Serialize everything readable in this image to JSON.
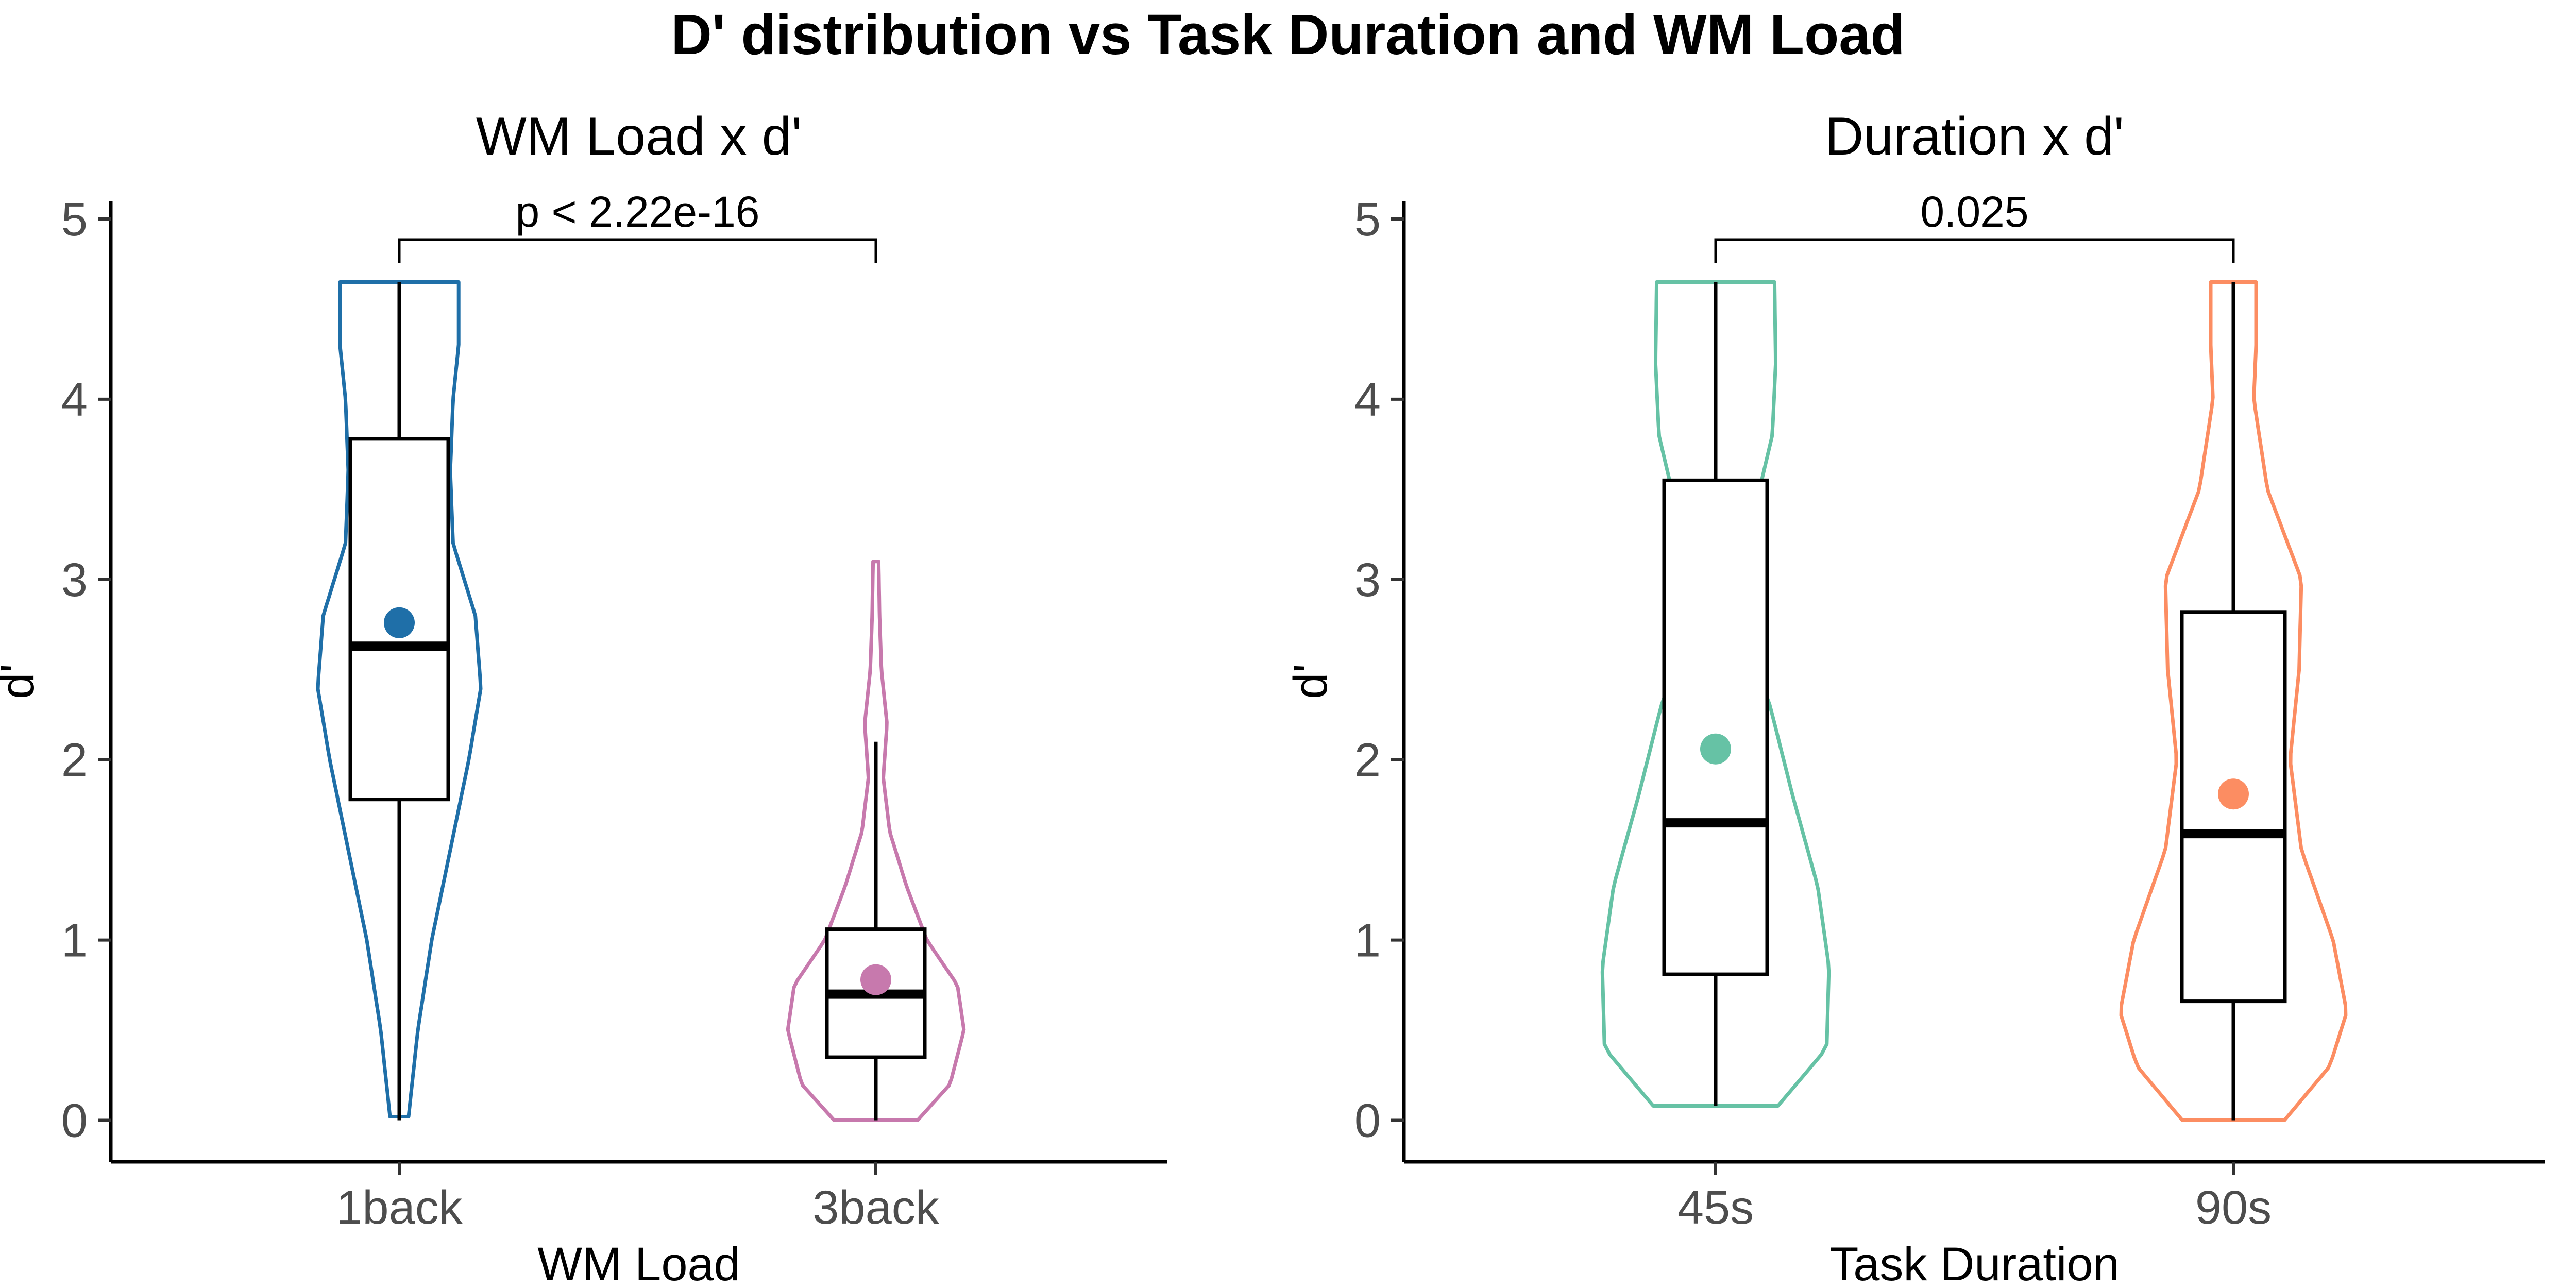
{
  "title": "D' distribution vs Task Duration and WM Load",
  "chart_data": [
    {
      "type": "violin",
      "title": "WM Load x d'",
      "xlabel": "WM Load",
      "ylabel": "d'",
      "categories": [
        "1back",
        "3back"
      ],
      "ylim": [
        -0.23,
        5.1
      ],
      "yticks": [
        0,
        1,
        2,
        3,
        4,
        5
      ],
      "colors": [
        "#1f6fa8",
        "#c779ad"
      ],
      "significance": {
        "between": [
          "1back",
          "3back"
        ],
        "label": "p < 2.22e-16"
      },
      "series": [
        {
          "name": "1back",
          "violin_range": [
            0.02,
            4.65
          ],
          "violin_profile": [
            [
              0.02,
              0.1
            ],
            [
              0.5,
              0.2
            ],
            [
              1.0,
              0.35
            ],
            [
              1.5,
              0.55
            ],
            [
              2.0,
              0.75
            ],
            [
              2.4,
              0.88
            ],
            [
              2.8,
              0.82
            ],
            [
              3.2,
              0.58
            ],
            [
              3.6,
              0.55
            ],
            [
              4.0,
              0.58
            ],
            [
              4.3,
              0.64
            ],
            [
              4.65,
              0.64
            ]
          ],
          "box": {
            "min": 0.0,
            "q1": 1.78,
            "median": 2.63,
            "q3": 3.78,
            "max": 4.65
          },
          "mean": 2.76
        },
        {
          "name": "3back",
          "violin_range": [
            0.0,
            3.1
          ],
          "violin_profile": [
            [
              0.0,
              0.45
            ],
            [
              0.2,
              0.8
            ],
            [
              0.5,
              0.95
            ],
            [
              0.75,
              0.88
            ],
            [
              1.0,
              0.55
            ],
            [
              1.3,
              0.33
            ],
            [
              1.6,
              0.15
            ],
            [
              1.9,
              0.08
            ],
            [
              2.2,
              0.12
            ],
            [
              2.5,
              0.06
            ],
            [
              2.8,
              0.04
            ],
            [
              3.1,
              0.03
            ]
          ],
          "box": {
            "min": 0.0,
            "q1": 0.35,
            "median": 0.7,
            "q3": 1.06,
            "max": 2.1
          },
          "mean": 0.78
        }
      ]
    },
    {
      "type": "violin",
      "title": "Duration x d'",
      "xlabel": "Task Duration",
      "ylabel": "d'",
      "categories": [
        "45s",
        "90s"
      ],
      "ylim": [
        -0.23,
        5.1
      ],
      "yticks": [
        0,
        1,
        2,
        3,
        4,
        5
      ],
      "colors": [
        "#66c2a5",
        "#fc8d62"
      ],
      "significance": {
        "between": [
          "45s",
          "90s"
        ],
        "label": "0.025"
      },
      "series": [
        {
          "name": "45s",
          "violin_range": [
            0.08,
            4.65
          ],
          "violin_profile": [
            [
              0.08,
              0.55
            ],
            [
              0.4,
              0.98
            ],
            [
              0.85,
              1.0
            ],
            [
              1.3,
              0.9
            ],
            [
              1.8,
              0.68
            ],
            [
              2.3,
              0.48
            ],
            [
              2.7,
              0.25
            ],
            [
              3.0,
              0.2
            ],
            [
              3.4,
              0.35
            ],
            [
              3.8,
              0.5
            ],
            [
              4.2,
              0.53
            ],
            [
              4.65,
              0.52
            ]
          ],
          "box": {
            "min": 0.08,
            "q1": 0.81,
            "median": 1.65,
            "q3": 3.55,
            "max": 4.65
          },
          "mean": 2.06
        },
        {
          "name": "90s",
          "violin_range": [
            0.0,
            4.65
          ],
          "violin_profile": [
            [
              0.0,
              0.45
            ],
            [
              0.3,
              0.85
            ],
            [
              0.6,
              1.0
            ],
            [
              1.0,
              0.88
            ],
            [
              1.5,
              0.6
            ],
            [
              2.0,
              0.5
            ],
            [
              2.5,
              0.58
            ],
            [
              3.0,
              0.6
            ],
            [
              3.5,
              0.3
            ],
            [
              4.0,
              0.18
            ],
            [
              4.3,
              0.2
            ],
            [
              4.65,
              0.2
            ]
          ],
          "box": {
            "min": 0.0,
            "q1": 0.66,
            "median": 1.59,
            "q3": 2.82,
            "max": 4.65
          },
          "mean": 1.81
        }
      ]
    }
  ]
}
